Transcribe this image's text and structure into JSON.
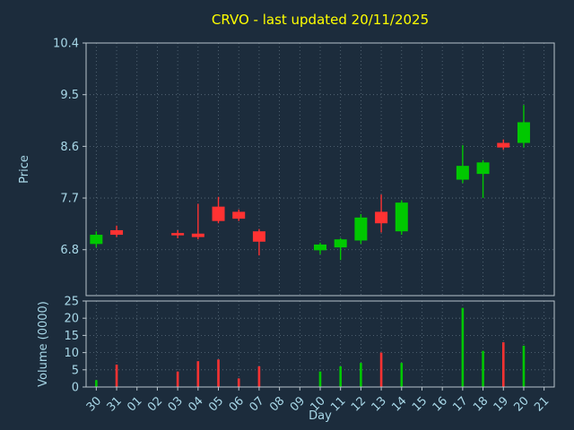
{
  "colors": {
    "background": "#1c2c3c",
    "title": "#ffff00",
    "tick_label": "#a8d8e8",
    "axis_label": "#a8d8e8",
    "spine": "#b8c4cc",
    "grid": "#93a7b5",
    "up": "#00c800",
    "down": "#ff3232"
  },
  "chart_data": {
    "type": "candlestick",
    "title": "CRVO - last updated 20/11/2025",
    "xlabel": "Day",
    "price_ylabel": "Price",
    "volume_ylabel": "Volume (0000)",
    "legend": "none",
    "grid": "dotted",
    "categories": [
      "30",
      "31",
      "01",
      "02",
      "03",
      "04",
      "05",
      "06",
      "07",
      "08",
      "09",
      "10",
      "11",
      "12",
      "13",
      "14",
      "15",
      "16",
      "17",
      "18",
      "19",
      "20",
      "21"
    ],
    "price_ticks": [
      6.8,
      7.7,
      8.6,
      9.5,
      10.4
    ],
    "price_ylim": [
      6.0,
      10.4
    ],
    "volume_ticks": [
      0,
      5,
      10,
      15,
      20,
      25
    ],
    "volume_ylim": [
      0,
      25
    ],
    "candles": [
      {
        "day": "30",
        "open": 6.9,
        "high": 7.12,
        "low": 6.84,
        "close": 7.06,
        "volume": 2.0
      },
      {
        "day": "31",
        "open": 7.14,
        "high": 7.22,
        "low": 7.02,
        "close": 7.06,
        "volume": 6.5
      },
      {
        "day": "03",
        "open": 7.09,
        "high": 7.14,
        "low": 7.0,
        "close": 7.05,
        "volume": 4.5
      },
      {
        "day": "04",
        "open": 7.08,
        "high": 7.6,
        "low": 6.98,
        "close": 7.02,
        "volume": 7.5
      },
      {
        "day": "05",
        "open": 7.55,
        "high": 7.72,
        "low": 7.26,
        "close": 7.3,
        "volume": 8.0
      },
      {
        "day": "06",
        "open": 7.46,
        "high": 7.5,
        "low": 7.3,
        "close": 7.34,
        "volume": 2.5
      },
      {
        "day": "07",
        "open": 7.12,
        "high": 7.16,
        "low": 6.7,
        "close": 6.94,
        "volume": 6.0
      },
      {
        "day": "10",
        "open": 6.79,
        "high": 6.92,
        "low": 6.72,
        "close": 6.89,
        "volume": 4.5
      },
      {
        "day": "11",
        "open": 6.84,
        "high": 7.0,
        "low": 6.62,
        "close": 6.98,
        "volume": 6.0
      },
      {
        "day": "12",
        "open": 6.96,
        "high": 7.42,
        "low": 6.9,
        "close": 7.36,
        "volume": 7.0
      },
      {
        "day": "13",
        "open": 7.46,
        "high": 7.76,
        "low": 7.1,
        "close": 7.26,
        "volume": 10.0
      },
      {
        "day": "14",
        "open": 7.12,
        "high": 7.66,
        "low": 7.06,
        "close": 7.62,
        "volume": 7.0
      },
      {
        "day": "17",
        "open": 8.02,
        "high": 8.62,
        "low": 7.96,
        "close": 8.26,
        "volume": 23.0
      },
      {
        "day": "18",
        "open": 8.12,
        "high": 8.36,
        "low": 7.7,
        "close": 8.32,
        "volume": 10.5
      },
      {
        "day": "19",
        "open": 8.66,
        "high": 8.72,
        "low": 8.54,
        "close": 8.58,
        "volume": 13.0
      },
      {
        "day": "20",
        "open": 8.66,
        "high": 9.32,
        "low": 8.58,
        "close": 9.02,
        "volume": 12.0
      }
    ]
  }
}
